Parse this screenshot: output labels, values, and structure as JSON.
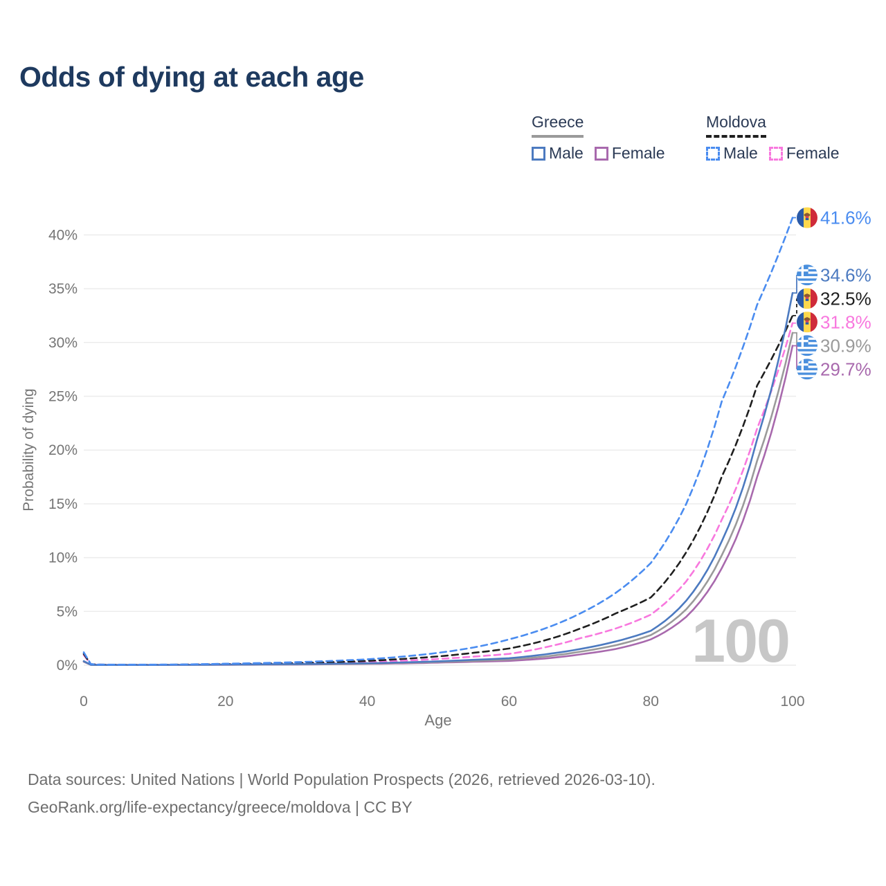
{
  "title": "Odds of dying at each age",
  "legend": {
    "groups": [
      {
        "country": "Greece",
        "line_style": "solid",
        "underline_color": "#9a9a9a",
        "items": [
          {
            "label": "Male",
            "color": "#4c7ac0",
            "dashed": false
          },
          {
            "label": "Female",
            "color": "#a869ad",
            "dashed": false
          }
        ]
      },
      {
        "country": "Moldova",
        "line_style": "dashed",
        "underline_color": "#1f1f1f",
        "items": [
          {
            "label": "Male",
            "color": "#4a8cf0",
            "dashed": true
          },
          {
            "label": "Female",
            "color": "#f878de",
            "dashed": true
          }
        ]
      }
    ]
  },
  "theme": {
    "title_color": "#1e3a5f",
    "axis_text_color": "#757575",
    "grid_color": "#ececec",
    "watermark_color": "#c7c7c7",
    "footer_text_color": "#6e6e6e",
    "legend_text_color": "#2b3a55"
  },
  "chart_data": {
    "type": "line",
    "title": "Odds of dying at each age",
    "xlabel": "Age",
    "ylabel": "Probability of dying",
    "xlim": [
      0,
      100
    ],
    "ylim_pct": [
      0,
      43
    ],
    "x_ticks": [
      0,
      20,
      40,
      60,
      80,
      100
    ],
    "x_tick_labels": [
      "0",
      "20",
      "40",
      "60",
      "80",
      "100"
    ],
    "y_ticks_pct": [
      0,
      5,
      10,
      15,
      20,
      25,
      30,
      35,
      40
    ],
    "y_tick_labels": [
      "0%",
      "5%",
      "10%",
      "15%",
      "20%",
      "25%",
      "30%",
      "35%",
      "40%"
    ],
    "grid": "horizontal-only",
    "legend_position": "top-right",
    "watermark": "100",
    "ages": [
      0,
      1,
      2,
      5,
      10,
      15,
      20,
      25,
      30,
      35,
      40,
      45,
      50,
      55,
      60,
      65,
      70,
      75,
      80,
      85,
      90,
      95,
      100
    ],
    "series": [
      {
        "name": "Moldova Male",
        "country": "Moldova",
        "sex": "Male",
        "color": "#4a8cf0",
        "dashed": true,
        "flag": "md",
        "end_label": "41.6%",
        "end_value_pct": 41.6,
        "values_pct": [
          1.2,
          0.1,
          0.06,
          0.05,
          0.05,
          0.08,
          0.14,
          0.2,
          0.28,
          0.4,
          0.55,
          0.8,
          1.15,
          1.65,
          2.4,
          3.4,
          4.8,
          6.7,
          9.5,
          15.0,
          24.5,
          33.5,
          41.6
        ]
      },
      {
        "name": "Greece Male",
        "country": "Greece",
        "sex": "Male",
        "color": "#4c7ac0",
        "dashed": false,
        "flag": "gr",
        "end_label": "34.6%",
        "end_value_pct": 34.6,
        "values_pct": [
          0.38,
          0.04,
          0.02,
          0.02,
          0.02,
          0.04,
          0.06,
          0.08,
          0.1,
          0.14,
          0.18,
          0.26,
          0.36,
          0.5,
          0.65,
          1.0,
          1.5,
          2.2,
          3.2,
          6.0,
          11.5,
          21.0,
          34.6
        ]
      },
      {
        "name": "Moldova Both sexes",
        "country": "Moldova",
        "sex": "Both",
        "color": "#1f1f1f",
        "dashed": true,
        "flag": "md",
        "end_label": "32.5%",
        "end_value_pct": 32.5,
        "values_pct": [
          1.05,
          0.09,
          0.05,
          0.04,
          0.04,
          0.06,
          0.1,
          0.14,
          0.2,
          0.28,
          0.4,
          0.58,
          0.82,
          1.15,
          1.55,
          2.3,
          3.4,
          4.8,
          6.3,
          10.5,
          17.5,
          26.0,
          32.5
        ]
      },
      {
        "name": "Moldova Female",
        "country": "Moldova",
        "sex": "Female",
        "color": "#f878de",
        "dashed": true,
        "flag": "md",
        "end_label": "31.8%",
        "end_value_pct": 31.8,
        "values_pct": [
          0.95,
          0.08,
          0.05,
          0.04,
          0.04,
          0.05,
          0.08,
          0.11,
          0.15,
          0.21,
          0.3,
          0.42,
          0.58,
          0.8,
          1.05,
          1.65,
          2.5,
          3.4,
          4.7,
          7.8,
          13.5,
          22.0,
          31.8
        ]
      },
      {
        "name": "Greece Both sexes",
        "country": "Greece",
        "sex": "Both",
        "color": "#9a9a9a",
        "dashed": false,
        "flag": "gr",
        "end_label": "30.9%",
        "end_value_pct": 30.9,
        "values_pct": [
          0.35,
          0.03,
          0.02,
          0.02,
          0.02,
          0.03,
          0.05,
          0.06,
          0.08,
          0.11,
          0.15,
          0.21,
          0.3,
          0.4,
          0.52,
          0.8,
          1.25,
          1.85,
          2.8,
          5.2,
          10.2,
          19.0,
          30.9
        ]
      },
      {
        "name": "Greece Female",
        "country": "Greece",
        "sex": "Female",
        "color": "#a869ad",
        "dashed": false,
        "flag": "gr",
        "end_label": "29.7%",
        "end_value_pct": 29.7,
        "values_pct": [
          0.32,
          0.03,
          0.02,
          0.02,
          0.02,
          0.03,
          0.04,
          0.05,
          0.06,
          0.09,
          0.12,
          0.17,
          0.24,
          0.32,
          0.4,
          0.62,
          1.0,
          1.5,
          2.4,
          4.5,
          9.0,
          17.5,
          29.7
        ]
      }
    ]
  },
  "footer": {
    "line1": "Data sources: United Nations | World Population Prospects (2026, retrieved 2026-03-10).",
    "line2": "GeoRank.org/life-expectancy/greece/moldova | CC BY"
  }
}
